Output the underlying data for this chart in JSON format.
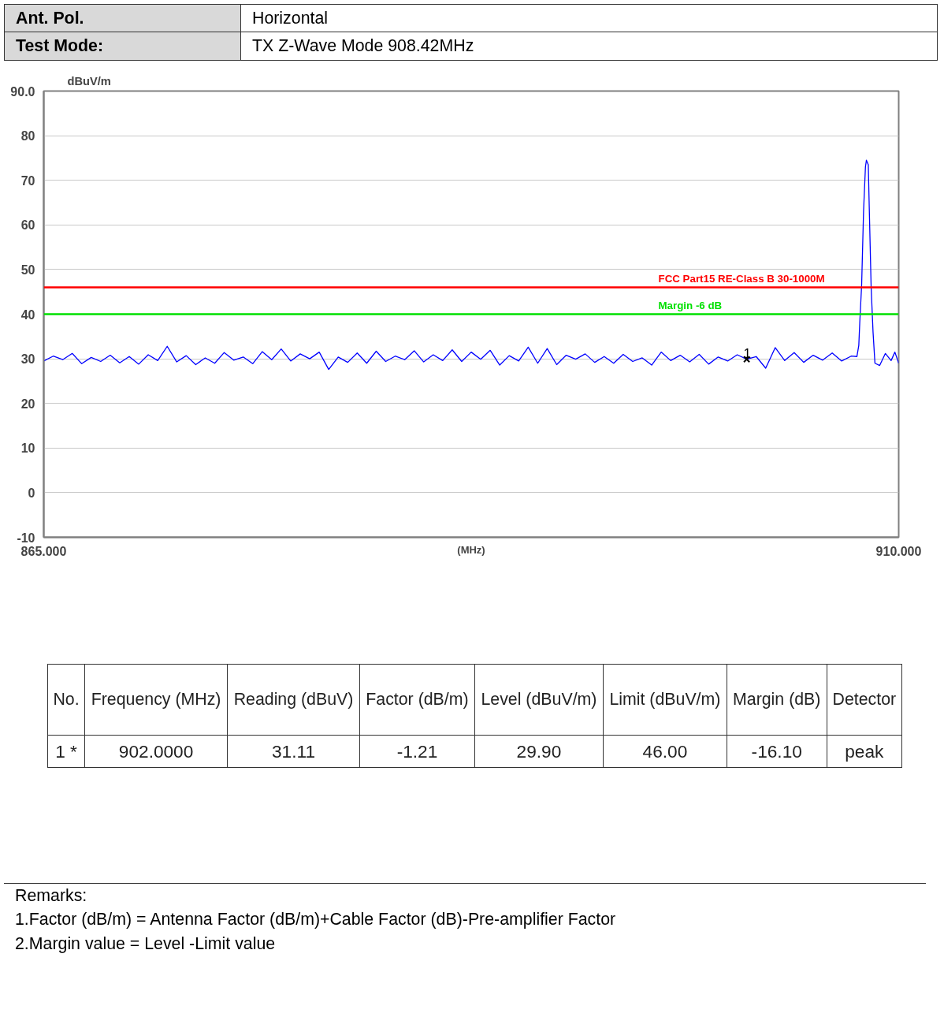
{
  "chart_data": {
    "type": "line",
    "xlabel": "(MHz)",
    "ylabel": "dBuV/m",
    "xlim": [
      865,
      910
    ],
    "ylim": [
      -10,
      90
    ],
    "xticks": [
      {
        "value": 865,
        "label": "865.000"
      },
      {
        "value": 910,
        "label": "910.000"
      }
    ],
    "yticks": [
      -10,
      0,
      10,
      20,
      30,
      40,
      50,
      60,
      70,
      {
        "value": 80,
        "label": "80"
      },
      {
        "value": 90,
        "label": "90.0"
      }
    ],
    "grid": "y",
    "line_style": "solid",
    "series": [
      {
        "color": "#0000ff",
        "x": [
          865.0,
          865.5,
          866.0,
          866.5,
          867.0,
          867.5,
          868.0,
          868.5,
          869.0,
          869.5,
          870.0,
          870.5,
          871.0,
          871.5,
          872.0,
          872.5,
          873.0,
          873.5,
          874.0,
          874.5,
          875.0,
          875.5,
          876.0,
          876.5,
          877.0,
          877.5,
          878.0,
          878.5,
          879.0,
          879.5,
          880.0,
          880.5,
          881.0,
          881.5,
          882.0,
          882.5,
          883.0,
          883.5,
          884.0,
          884.5,
          885.0,
          885.5,
          886.0,
          886.5,
          887.0,
          887.5,
          888.0,
          888.5,
          889.0,
          889.5,
          890.0,
          890.5,
          891.0,
          891.5,
          892.0,
          892.5,
          893.0,
          893.5,
          894.0,
          894.5,
          895.0,
          895.5,
          896.0,
          896.5,
          897.0,
          897.5,
          898.0,
          898.5,
          899.0,
          899.5,
          900.0,
          900.5,
          901.0,
          901.5,
          902.0,
          902.5,
          903.0,
          903.5,
          904.0,
          904.5,
          905.0,
          905.5,
          906.0,
          906.5,
          907.0,
          907.5,
          907.8,
          907.9,
          907.95,
          908.05,
          908.15,
          908.25,
          908.3,
          908.4,
          908.45,
          908.55,
          908.65,
          908.75,
          909.0,
          909.3,
          909.6,
          909.8,
          910.0
        ],
        "values": [
          29.5,
          30.6,
          29.8,
          31.2,
          28.9,
          30.3,
          29.4,
          30.8,
          29.1,
          30.5,
          28.8,
          30.9,
          29.6,
          32.8,
          29.3,
          30.7,
          28.7,
          30.2,
          29.0,
          31.4,
          29.7,
          30.4,
          28.9,
          31.6,
          29.8,
          32.2,
          29.5,
          31.1,
          30.0,
          31.5,
          27.6,
          30.4,
          29.2,
          31.3,
          29.0,
          31.7,
          29.4,
          30.6,
          29.8,
          31.8,
          29.3,
          30.9,
          29.6,
          32.0,
          29.4,
          31.5,
          29.9,
          31.9,
          28.6,
          30.7,
          29.5,
          32.6,
          29.0,
          32.3,
          28.7,
          30.8,
          29.9,
          31.1,
          29.2,
          30.5,
          29.0,
          31.0,
          29.4,
          30.2,
          28.6,
          31.5,
          29.6,
          30.8,
          29.3,
          31.0,
          28.8,
          30.4,
          29.5,
          30.9,
          29.9,
          30.5,
          27.9,
          32.5,
          29.6,
          31.4,
          29.2,
          30.8,
          29.7,
          31.3,
          29.5,
          30.6,
          30.5,
          33.0,
          38,
          46.5,
          63,
          73,
          74.5,
          73.5,
          64,
          46,
          36,
          29,
          28.5,
          31.2,
          29.6,
          31.5,
          29.0
        ]
      },
      {
        "type": "scatter",
        "marker": "cross",
        "color": "#000000",
        "x": [
          902
        ],
        "values": [
          29.9
        ]
      }
    ],
    "ref_lines": [
      {
        "axis": "y",
        "value": 46,
        "label": "FCC Part15 RE-Class B 30-1000M",
        "color": "#ff0000"
      },
      {
        "axis": "y",
        "value": 40,
        "label": "Margin -6 dB",
        "color": "#00e000"
      }
    ],
    "annotations": [
      "Ant. Pol.",
      "Horizontal",
      "Test Mode:",
      "TX Z-Wave Mode 908.42MHz",
      "No.",
      "Frequency (MHz)",
      "Reading (dBuV)",
      "Factor (dB/m)",
      "Level (dBuV/m)",
      "Limit (dBuV/m)",
      "Margin (dB)",
      "Detector",
      "1  *",
      "902.0000",
      "31.11",
      "-1.21",
      "29.90",
      "46.00",
      "-16.10",
      "peak",
      "Remarks:",
      "1.Factor (dB/m) = Antenna Factor (dB/m)+Cable Factor (dB)-Pre-amplifier Factor",
      "2.Margin value = Level -Limit value",
      {
        "text": "1",
        "x": 902,
        "y": 29.9
      }
    ]
  }
}
